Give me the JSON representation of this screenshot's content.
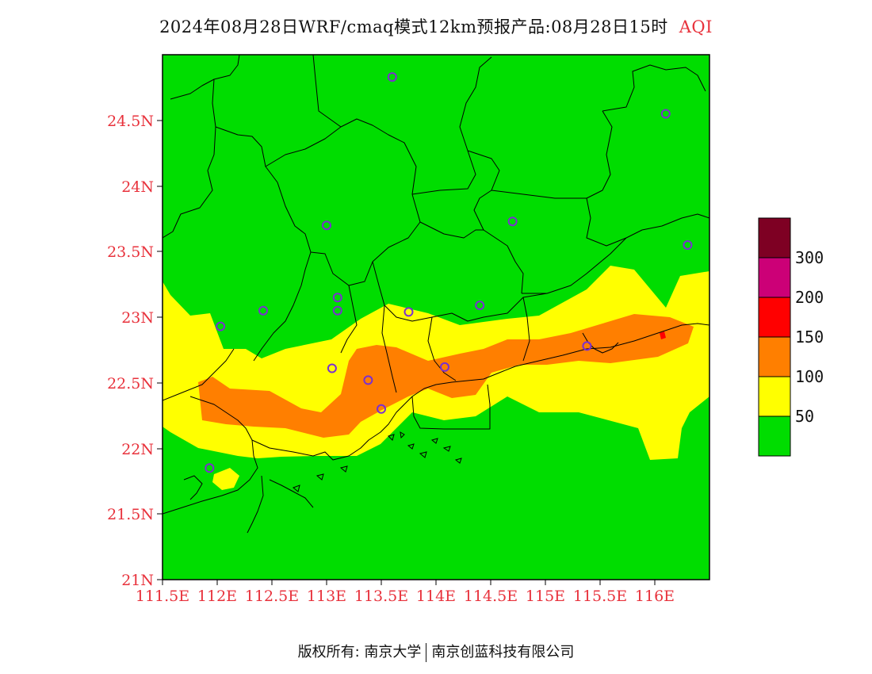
{
  "title": {
    "main": "2024年08月28日WRF/cmaq模式12km预报产品:08月28日15时",
    "variable": "AQI"
  },
  "map": {
    "x_ticks": [
      "111.5E",
      "112E",
      "112.5E",
      "113E",
      "113.5E",
      "114E",
      "114.5E",
      "115E",
      "115.5E",
      "116E"
    ],
    "y_ticks": [
      "24.5N",
      "24N",
      "23.5N",
      "23N",
      "22.5N",
      "22N",
      "21.5N",
      "21N"
    ],
    "lon_range": [
      111.5,
      116.5
    ],
    "lat_range": [
      21,
      25
    ],
    "colors": {
      "good": "#00dd00",
      "moderate": "#ffff00",
      "unhealthy_sensitive": "#ff7f00",
      "unhealthy": "#ff0000",
      "very_unhealthy": "#cc0077",
      "hazardous": "#7e0023",
      "boundary": "#000000",
      "station": "#7a30d0"
    },
    "stations": [
      {
        "lon": 113.6,
        "lat": 24.83
      },
      {
        "lon": 116.1,
        "lat": 24.55
      },
      {
        "lon": 113.0,
        "lat": 23.7
      },
      {
        "lon": 114.7,
        "lat": 23.73
      },
      {
        "lon": 116.3,
        "lat": 23.55
      },
      {
        "lon": 112.42,
        "lat": 23.05
      },
      {
        "lon": 113.1,
        "lat": 23.15
      },
      {
        "lon": 113.1,
        "lat": 23.05
      },
      {
        "lon": 113.75,
        "lat": 23.04
      },
      {
        "lon": 114.4,
        "lat": 23.09
      },
      {
        "lon": 112.03,
        "lat": 22.93
      },
      {
        "lon": 115.38,
        "lat": 22.78
      },
      {
        "lon": 113.05,
        "lat": 22.61
      },
      {
        "lon": 114.08,
        "lat": 22.62
      },
      {
        "lon": 113.38,
        "lat": 22.52
      },
      {
        "lon": 113.5,
        "lat": 22.3
      },
      {
        "lon": 111.93,
        "lat": 21.85
      }
    ]
  },
  "legend": {
    "levels": [
      "50",
      "100",
      "150",
      "200",
      "300"
    ]
  },
  "footer": {
    "left": "版权所有: 南京大学",
    "right": "南京创蓝科技有限公司"
  }
}
